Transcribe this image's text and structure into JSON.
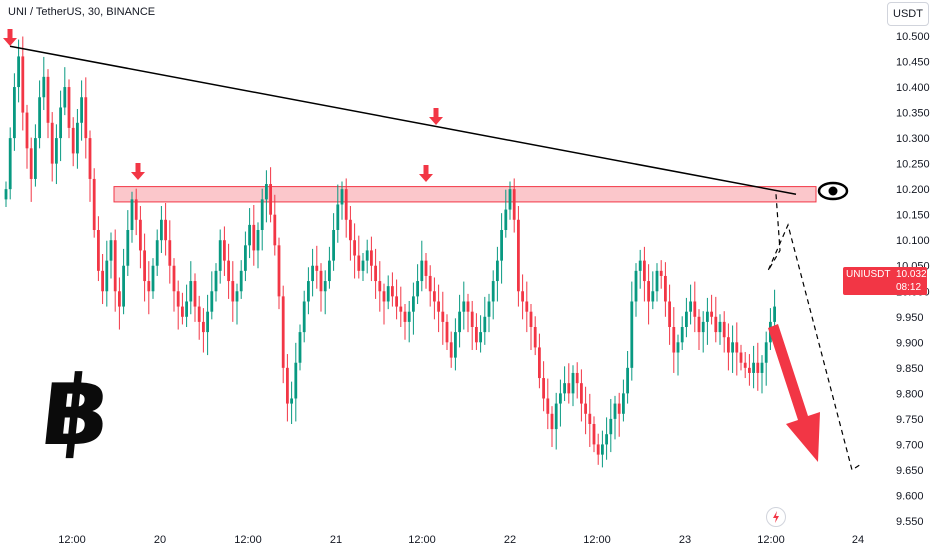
{
  "header": {
    "symbol_title": "UNI / TetherUS, 30, BINANCE"
  },
  "toolbar": {
    "currency": "USDT"
  },
  "price_badge": {
    "symbol": "UNIUSDT",
    "price": "10.032",
    "countdown": "08:12",
    "color": "#f23645"
  },
  "icons": [
    "down-arrow-icon",
    "eye-icon",
    "bitcoin-logo-icon",
    "big-down-arrow-icon",
    "flash-icon"
  ],
  "colors": {
    "up": "#089981",
    "down": "#f23645",
    "resistance_zone": "#f23645",
    "trendline": "#000000"
  },
  "chart_data": {
    "type": "candlestick",
    "y_axis": {
      "ticks": [
        "10.500",
        "10.450",
        "10.400",
        "10.350",
        "10.300",
        "10.250",
        "10.200",
        "10.150",
        "10.100",
        "10.050",
        "10.000",
        "9.950",
        "9.900",
        "9.850",
        "9.800",
        "9.750",
        "9.700",
        "9.650",
        "9.600",
        "9.550"
      ],
      "range": [
        9.53,
        10.53
      ]
    },
    "x_axis": {
      "ticks": [
        "12:00",
        "20",
        "12:00",
        "21",
        "12:00",
        "22",
        "12:00",
        "23",
        "12:00",
        "24"
      ]
    },
    "candles_close": [
      10.2,
      10.3,
      10.4,
      10.46,
      10.35,
      10.28,
      10.22,
      10.3,
      10.38,
      10.42,
      10.33,
      10.25,
      10.3,
      10.36,
      10.4,
      10.32,
      10.27,
      10.33,
      10.38,
      10.3,
      10.22,
      10.12,
      10.04,
      10.0,
      10.06,
      10.1,
      10.0,
      9.97,
      10.05,
      10.12,
      10.18,
      10.14,
      10.08,
      10.02,
      10.0,
      10.05,
      10.1,
      10.14,
      10.1,
      10.05,
      10.0,
      9.97,
      9.95,
      9.98,
      10.02,
      9.97,
      9.94,
      9.92,
      9.96,
      10.0,
      10.04,
      10.1,
      10.06,
      10.02,
      9.98,
      10.0,
      10.04,
      10.09,
      10.13,
      10.08,
      10.12,
      10.18,
      10.21,
      10.15,
      10.09,
      9.99,
      9.85,
      9.78,
      9.79,
      9.86,
      9.92,
      9.98,
      10.02,
      10.05,
      10.04,
      10.0,
      10.02,
      10.06,
      10.12,
      10.17,
      10.2,
      10.14,
      10.1,
      10.07,
      10.04,
      10.06,
      10.08,
      10.05,
      10.02,
      10.0,
      9.98,
      10.01,
      9.99,
      9.97,
      9.96,
      9.94,
      9.96,
      9.99,
      10.02,
      10.06,
      10.03,
      10.0,
      9.98,
      9.96,
      9.94,
      9.9,
      9.87,
      9.92,
      9.96,
      9.98,
      9.96,
      9.93,
      9.9,
      9.92,
      9.95,
      9.98,
      10.02,
      10.06,
      10.12,
      10.16,
      10.2,
      10.14,
      10.0,
      9.98,
      9.96,
      9.93,
      9.89,
      9.83,
      9.79,
      9.76,
      9.73,
      9.78,
      9.8,
      9.82,
      9.8,
      9.84,
      9.82,
      9.78,
      9.76,
      9.74,
      9.7,
      9.68,
      9.7,
      9.72,
      9.75,
      9.78,
      9.76,
      9.8,
      9.85,
      9.98,
      10.04,
      10.06,
      10.02,
      9.98,
      10.0,
      10.04,
      10.03,
      9.98,
      9.93,
      9.88,
      9.9,
      9.93,
      9.96,
      9.98,
      9.95,
      9.92,
      9.94,
      9.96,
      9.95,
      9.92,
      9.94,
      9.91,
      9.88,
      9.9,
      9.88,
      9.86,
      9.85,
      9.84,
      9.86,
      9.84,
      9.86,
      9.9,
      9.94,
      9.97,
      9.96,
      9.99,
      10.0,
      9.97,
      9.95,
      9.97,
      9.99,
      10.02,
      10.03,
      10.0,
      9.98,
      10.0,
      10.02,
      10.04,
      10.05,
      10.03,
      10.01,
      10.04,
      10.06,
      10.03,
      10.02,
      10.05,
      10.03
    ],
    "resistance_zone": [
      10.175,
      10.205
    ],
    "trendline": {
      "from_value": 10.48,
      "to_value": 10.19
    },
    "projection_end_value": 9.65
  }
}
